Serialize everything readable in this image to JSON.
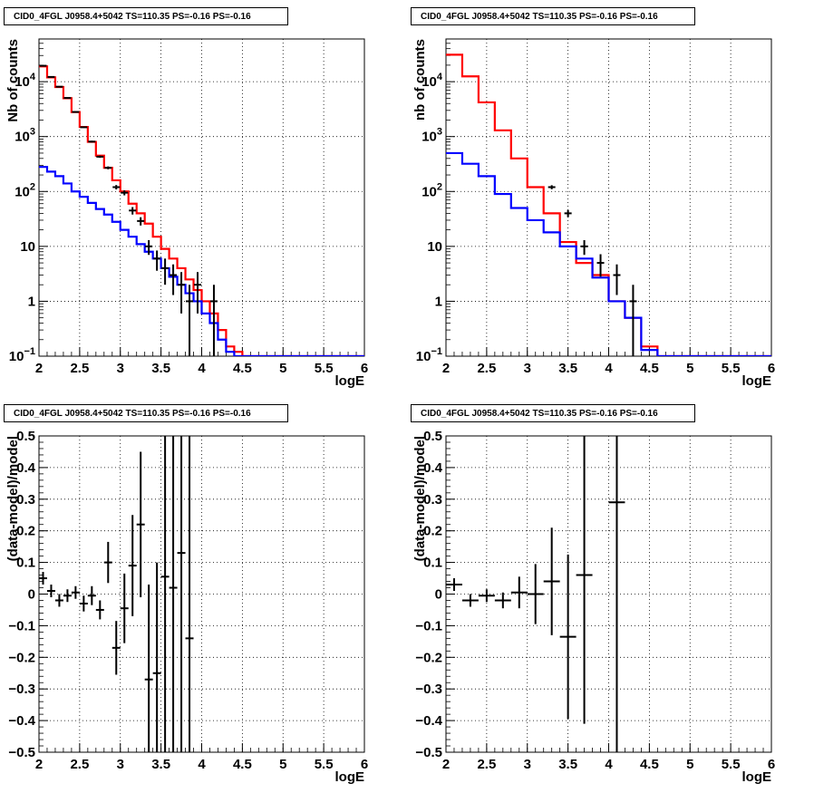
{
  "chart_data": [
    {
      "id": "p0",
      "type": "histogram",
      "title": "CID0_4FGL J0958.4+5042 TS=110.35 PS=-0.16 PS=-0.16",
      "xlabel": "logE",
      "ylabel": "Nb of counts",
      "xlim": [
        2,
        6
      ],
      "ylim": [
        0.1,
        60000
      ],
      "yscale": "log",
      "grid": true,
      "x_ticks": [
        "2",
        "2.5",
        "3",
        "3.5",
        "4",
        "4.5",
        "5",
        "5.5",
        "6"
      ],
      "y_ticks": [
        {
          "value": 0.1,
          "label": "10",
          "exp": "−1"
        },
        {
          "value": 1,
          "label": "1",
          "exp": ""
        },
        {
          "value": 10,
          "label": "10",
          "exp": ""
        },
        {
          "value": 100,
          "label": "10",
          "exp": "2"
        },
        {
          "value": 1000,
          "label": "10",
          "exp": "3"
        },
        {
          "value": 10000,
          "label": "10",
          "exp": "4"
        }
      ],
      "bin_edges": [
        2.0,
        2.1,
        2.2,
        2.3,
        2.4,
        2.5,
        2.6,
        2.7,
        2.8,
        2.9,
        3.0,
        3.1,
        3.2,
        3.3,
        3.4,
        3.5,
        3.6,
        3.7,
        3.8,
        3.9,
        4.0,
        4.1,
        4.2,
        4.3,
        4.4,
        4.5,
        4.6,
        4.7,
        4.8,
        4.9,
        5.0,
        5.1,
        5.2,
        5.3,
        5.4,
        5.5,
        5.6,
        5.7,
        5.8,
        5.9,
        6.0
      ],
      "series": [
        {
          "name": "",
          "color": "#ff0000",
          "style": "step",
          "values": [
            19000,
            12000,
            8000,
            5000,
            2800,
            1500,
            800,
            450,
            270,
            160,
            100,
            60,
            40,
            26,
            15,
            9,
            6,
            4,
            2.5,
            1.6,
            1.0,
            0.6,
            0.3,
            0.15,
            0.12,
            0.1,
            0.1,
            0.1,
            0.1,
            0.1,
            0.1,
            0.1,
            0.1,
            0.1,
            0.1,
            0.1,
            0.1,
            0.1,
            0.1,
            0.1
          ]
        },
        {
          "name": "",
          "color": "#0000ff",
          "style": "step",
          "values": [
            280,
            230,
            190,
            140,
            100,
            80,
            62,
            48,
            38,
            28,
            20,
            15,
            11,
            8,
            6,
            4,
            2.8,
            2.0,
            1.4,
            1.0,
            0.6,
            0.4,
            0.2,
            0.12,
            0.1,
            0.1,
            0.1,
            0.1,
            0.1,
            0.1,
            0.1,
            0.1,
            0.1,
            0.1,
            0.1,
            0.1,
            0.1,
            0.1,
            0.1,
            0.1
          ]
        },
        {
          "name": "",
          "color": "#000000",
          "style": "points",
          "points": [
            {
              "x": 2.05,
              "y": 19500,
              "lo": 19360,
              "hi": 19640
            },
            {
              "x": 2.15,
              "y": 12200,
              "lo": 12090,
              "hi": 12310
            },
            {
              "x": 2.25,
              "y": 8100,
              "lo": 8010,
              "hi": 8190
            },
            {
              "x": 2.35,
              "y": 5050,
              "lo": 4980,
              "hi": 5120
            },
            {
              "x": 2.45,
              "y": 2810,
              "lo": 2760,
              "hi": 2860
            },
            {
              "x": 2.55,
              "y": 1480,
              "lo": 1440,
              "hi": 1520
            },
            {
              "x": 2.65,
              "y": 810,
              "lo": 780,
              "hi": 840
            },
            {
              "x": 2.75,
              "y": 430,
              "lo": 410,
              "hi": 450
            },
            {
              "x": 2.85,
              "y": 270,
              "lo": 254,
              "hi": 286
            },
            {
              "x": 2.95,
              "y": 120,
              "lo": 109,
              "hi": 131
            },
            {
              "x": 3.05,
              "y": 95,
              "lo": 85,
              "hi": 105
            },
            {
              "x": 3.15,
              "y": 45,
              "lo": 38,
              "hi": 52
            },
            {
              "x": 3.25,
              "y": 29,
              "lo": 24,
              "hi": 34
            },
            {
              "x": 3.35,
              "y": 10,
              "lo": 7,
              "hi": 13
            },
            {
              "x": 3.45,
              "y": 6,
              "lo": 3.6,
              "hi": 8.4
            },
            {
              "x": 3.55,
              "y": 4,
              "lo": 2,
              "hi": 6
            },
            {
              "x": 3.65,
              "y": 3,
              "lo": 1.3,
              "hi": 4.7
            },
            {
              "x": 3.75,
              "y": 2,
              "lo": 0.6,
              "hi": 3.4
            },
            {
              "x": 3.85,
              "y": 1,
              "lo": 0.1,
              "hi": 2
            },
            {
              "x": 3.95,
              "y": 2,
              "lo": 0.6,
              "hi": 3.4
            },
            {
              "x": 4.15,
              "y": 1,
              "lo": 0.1,
              "hi": 2
            }
          ]
        }
      ]
    },
    {
      "id": "p1",
      "type": "histogram",
      "title": "CID0_4FGL J0958.4+5042 TS=110.35 PS=-0.16 PS=-0.16",
      "xlabel": "logE",
      "ylabel": "nb of counts",
      "xlim": [
        2,
        6
      ],
      "ylim": [
        0.1,
        60000
      ],
      "yscale": "log",
      "grid": true,
      "x_ticks": [
        "2",
        "2.5",
        "3",
        "3.5",
        "4",
        "4.5",
        "5",
        "5.5",
        "6"
      ],
      "y_ticks": [
        {
          "value": 0.1,
          "label": "10",
          "exp": "−1"
        },
        {
          "value": 1,
          "label": "1",
          "exp": ""
        },
        {
          "value": 10,
          "label": "10",
          "exp": ""
        },
        {
          "value": 100,
          "label": "10",
          "exp": "2"
        },
        {
          "value": 1000,
          "label": "10",
          "exp": "3"
        },
        {
          "value": 10000,
          "label": "10",
          "exp": "4"
        }
      ],
      "bin_edges": [
        2.0,
        2.2,
        2.4,
        2.6,
        2.8,
        3.0,
        3.2,
        3.4,
        3.6,
        3.8,
        4.0,
        4.2,
        4.4,
        4.6,
        4.8,
        5.0,
        5.2,
        5.4,
        5.6,
        5.8,
        6.0
      ],
      "series": [
        {
          "name": "",
          "color": "#ff0000",
          "style": "step",
          "values": [
            31000,
            12500,
            4200,
            1300,
            400,
            120,
            40,
            12,
            5,
            3,
            1.0,
            0.5,
            0.15,
            0.1,
            0.1,
            0.1,
            0.1,
            0.1,
            0.1,
            0.1
          ]
        },
        {
          "name": "",
          "color": "#0000ff",
          "style": "step",
          "values": [
            500,
            320,
            190,
            90,
            50,
            30,
            18,
            10,
            6,
            2.7,
            1.0,
            0.5,
            0.13,
            0.1,
            0.1,
            0.1,
            0.1,
            0.1,
            0.1,
            0.1
          ]
        },
        {
          "name": "",
          "color": "#000000",
          "style": "points",
          "points": [
            {
              "x": 3.3,
              "y": 120,
              "lo": 110,
              "hi": 130
            },
            {
              "x": 3.5,
              "y": 40,
              "lo": 34,
              "hi": 46
            },
            {
              "x": 3.7,
              "y": 10,
              "lo": 7,
              "hi": 13
            },
            {
              "x": 3.9,
              "y": 5,
              "lo": 2.8,
              "hi": 7.2
            },
            {
              "x": 4.1,
              "y": 3,
              "lo": 1.3,
              "hi": 4.7
            },
            {
              "x": 4.3,
              "y": 1,
              "lo": 0.1,
              "hi": 2
            }
          ]
        }
      ]
    },
    {
      "id": "p2",
      "type": "scatter",
      "title": "CID0_4FGL J0958.4+5042 TS=110.35 PS=-0.16 PS=-0.16",
      "xlabel": "logE",
      "ylabel": "(data-model)/model",
      "xlim": [
        2,
        6
      ],
      "ylim": [
        -0.5,
        0.5
      ],
      "yscale": "linear",
      "grid": true,
      "x_ticks": [
        "2",
        "2.5",
        "3",
        "3.5",
        "4",
        "4.5",
        "5",
        "5.5",
        "6"
      ],
      "y_ticks": [
        "−0.5",
        "−0.4",
        "−0.3",
        "−0.2",
        "−0.1",
        "0",
        "0.1",
        "0.2",
        "0.3",
        "0.4",
        "0.5"
      ],
      "points": [
        {
          "x": 2.05,
          "y": 0.05,
          "err": 0.02
        },
        {
          "x": 2.15,
          "y": 0.01,
          "err": 0.02
        },
        {
          "x": 2.25,
          "y": -0.02,
          "err": 0.02
        },
        {
          "x": 2.35,
          "y": -0.005,
          "err": 0.02
        },
        {
          "x": 2.45,
          "y": 0.005,
          "err": 0.02
        },
        {
          "x": 2.55,
          "y": -0.03,
          "err": 0.025
        },
        {
          "x": 2.65,
          "y": -0.005,
          "err": 0.03
        },
        {
          "x": 2.75,
          "y": -0.05,
          "err": 0.03
        },
        {
          "x": 2.85,
          "y": 0.1,
          "err": 0.065
        },
        {
          "x": 2.95,
          "y": -0.17,
          "err": 0.085
        },
        {
          "x": 3.05,
          "y": -0.045,
          "err": 0.11
        },
        {
          "x": 3.15,
          "y": 0.09,
          "err": 0.16
        },
        {
          "x": 3.25,
          "y": 0.22,
          "err": 0.23
        },
        {
          "x": 3.35,
          "y": -0.27,
          "err": 0.3
        },
        {
          "x": 3.45,
          "y": -0.25,
          "err": 0.35
        },
        {
          "x": 3.55,
          "y": 0.055,
          "err": 0.6
        },
        {
          "x": 3.65,
          "y": 0.02,
          "err": 0.7
        },
        {
          "x": 3.75,
          "y": 0.13,
          "err": 0.8
        },
        {
          "x": 3.85,
          "y": -0.14,
          "err": 0.9
        }
      ]
    },
    {
      "id": "p3",
      "type": "scatter",
      "title": "CID0_4FGL J0958.4+5042 TS=110.35 PS=-0.16 PS=-0.16",
      "xlabel": "logE",
      "ylabel": "(data-model)/model",
      "xlim": [
        2,
        6
      ],
      "ylim": [
        -0.5,
        0.5
      ],
      "yscale": "linear",
      "grid": true,
      "x_ticks": [
        "2",
        "2.5",
        "3",
        "3.5",
        "4",
        "4.5",
        "5",
        "5.5",
        "6"
      ],
      "y_ticks": [
        "−0.5",
        "−0.4",
        "−0.3",
        "−0.2",
        "−0.1",
        "0",
        "0.1",
        "0.2",
        "0.3",
        "0.4",
        "0.5"
      ],
      "points": [
        {
          "x": 2.1,
          "y": 0.03,
          "err": 0.02
        },
        {
          "x": 2.3,
          "y": -0.02,
          "err": 0.02
        },
        {
          "x": 2.5,
          "y": -0.005,
          "err": 0.02
        },
        {
          "x": 2.7,
          "y": -0.02,
          "err": 0.025
        },
        {
          "x": 2.9,
          "y": 0.005,
          "err": 0.05
        },
        {
          "x": 3.1,
          "y": 0.0,
          "err": 0.095
        },
        {
          "x": 3.3,
          "y": 0.04,
          "err": 0.17
        },
        {
          "x": 3.5,
          "y": -0.135,
          "err": 0.26
        },
        {
          "x": 3.7,
          "y": 0.06,
          "err": 0.47
        },
        {
          "x": 4.1,
          "y": 0.29,
          "err": 0.9
        }
      ]
    }
  ]
}
